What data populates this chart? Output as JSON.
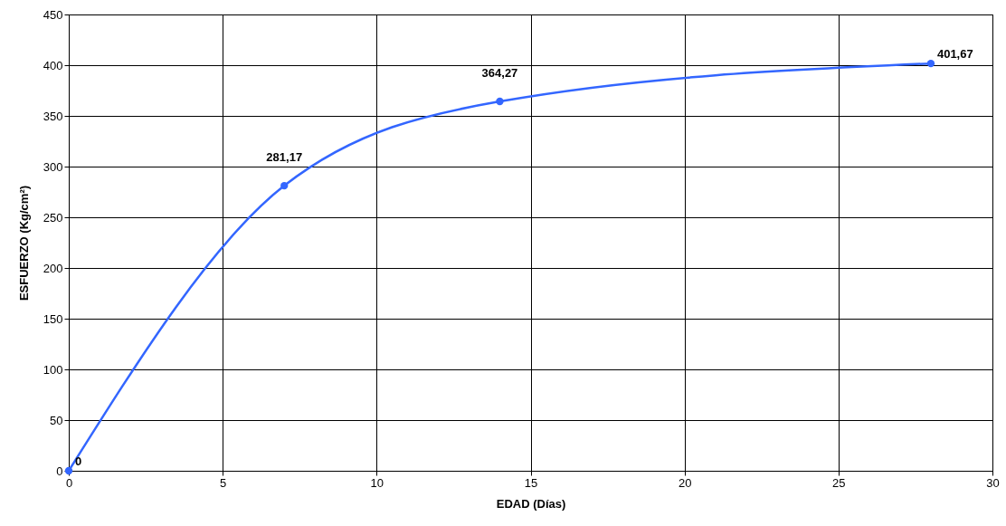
{
  "chart_data": {
    "type": "line",
    "xlabel": "EDAD (Días)",
    "ylabel": "ESFUERZO (Kg/cm²)",
    "x": [
      0,
      7,
      14,
      28
    ],
    "series": [
      {
        "color": "#3366ff",
        "values": [
          0,
          281.17,
          364.27,
          401.67
        ],
        "value_labels": [
          "0",
          "281,17",
          "364,27",
          "401,67"
        ]
      }
    ],
    "xlim": [
      0,
      30
    ],
    "xticks": [
      0,
      5,
      10,
      15,
      20,
      25,
      30
    ],
    "ylim": [
      0,
      450
    ],
    "yticks": [
      0,
      50,
      100,
      150,
      200,
      250,
      300,
      350,
      400,
      450
    ],
    "grid": true,
    "marker": "circle"
  }
}
